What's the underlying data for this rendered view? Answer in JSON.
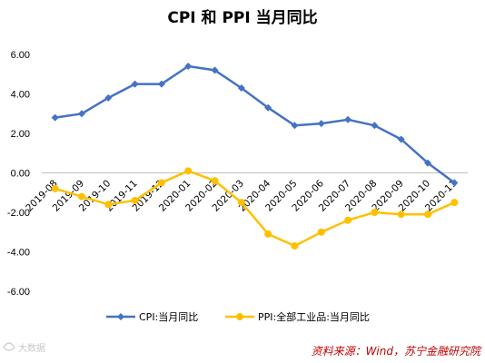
{
  "chart_data": {
    "type": "line",
    "title": "CPI 和 PPI 当月同比",
    "categories": [
      "2019-08",
      "2019-09",
      "2019-10",
      "2019-11",
      "2019-12",
      "2020-01",
      "2020-02",
      "2020-03",
      "2020-04",
      "2020-05",
      "2020-06",
      "2020-07",
      "2020-08",
      "2020-09",
      "2020-10",
      "2020-11"
    ],
    "series": [
      {
        "name": "CPI:当月同比",
        "color": "#4472c4",
        "marker": "diamond",
        "values": [
          2.8,
          3.0,
          3.8,
          4.5,
          4.5,
          5.4,
          5.2,
          4.3,
          3.3,
          2.4,
          2.5,
          2.7,
          2.4,
          1.7,
          0.5,
          -0.5
        ]
      },
      {
        "name": "PPI:全部工业品:当月同比",
        "color": "#ffc000",
        "marker": "circle",
        "values": [
          -0.8,
          -1.2,
          -1.6,
          -1.4,
          -0.5,
          0.1,
          -0.4,
          -1.5,
          -3.1,
          -3.7,
          -3.0,
          -2.4,
          -2.0,
          -2.1,
          -2.1,
          -1.5
        ]
      }
    ],
    "yticks": [
      "6.00",
      "4.00",
      "2.00",
      "0.00",
      "-2.00",
      "-4.00",
      "-6.00"
    ],
    "ylim": [
      -6,
      6
    ],
    "grid": false,
    "legend_position": "bottom"
  },
  "source_note": "资料来源：Wind，苏宁金融研究院",
  "watermark": "大数据"
}
